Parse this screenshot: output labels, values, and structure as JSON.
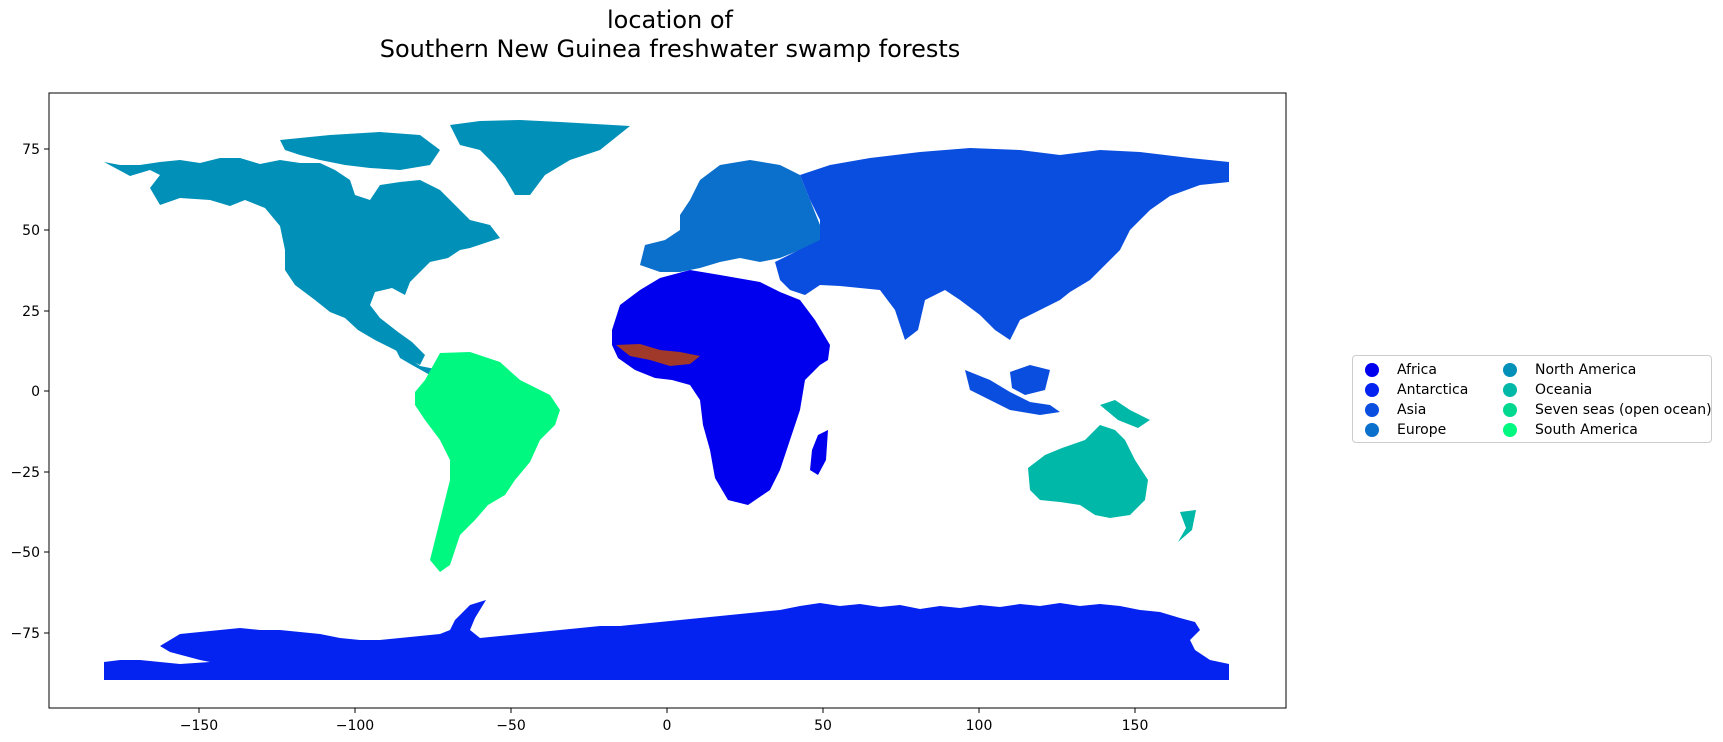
{
  "title_line1": "location of",
  "title_line2": "Southern New Guinea freshwater swamp forests",
  "axes": {
    "x_ticks": [
      "−150",
      "−100",
      "−50",
      "0",
      "50",
      "100",
      "150"
    ],
    "y_ticks": [
      "75",
      "50",
      "25",
      "0",
      "−25",
      "−50",
      "−75"
    ],
    "xlim": [
      -198,
      198
    ],
    "ylim": [
      -98,
      92
    ]
  },
  "legend": {
    "placement": "right",
    "items": [
      {
        "label": "Africa",
        "color": "#0000ee"
      },
      {
        "label": "Antarctica",
        "color": "#0422f0"
      },
      {
        "label": "Asia",
        "color": "#0a4ee0"
      },
      {
        "label": "Europe",
        "color": "#0b6fcc"
      },
      {
        "label": "North America",
        "color": "#0090b8"
      },
      {
        "label": "Oceania",
        "color": "#00b8a8"
      },
      {
        "label": "Seven seas (open ocean)",
        "color": "#00d890"
      },
      {
        "label": "South America",
        "color": "#00f880"
      }
    ]
  },
  "highlight": {
    "color": "#a0392a"
  }
}
